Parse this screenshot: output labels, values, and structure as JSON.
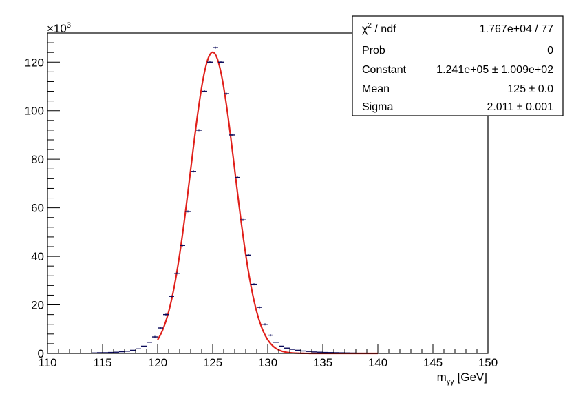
{
  "chart_data": {
    "type": "line",
    "title": "",
    "xlabel": "[GeV]",
    "xlabel_symbol": "m",
    "xlabel_subscript": "γγ",
    "ylabel": "",
    "y_multiplier_base": "×10",
    "y_multiplier_exp": "3",
    "xlim": [
      110,
      150
    ],
    "ylim": [
      0,
      132
    ],
    "x_ticks": [
      "110",
      "115",
      "120",
      "125",
      "130",
      "135",
      "140",
      "145",
      "150"
    ],
    "y_ticks": [
      "0",
      "20",
      "40",
      "60",
      "80",
      "100",
      "120"
    ],
    "colors": {
      "histogram": "#0a0a5a",
      "fit": "#e0201b"
    },
    "histogram": {
      "name": "",
      "bin_width": 0.5,
      "x": [
        114.25,
        114.75,
        115.25,
        115.75,
        116.25,
        116.75,
        117.25,
        117.75,
        118.25,
        118.75,
        119.25,
        119.75,
        120.25,
        120.75,
        121.25,
        121.75,
        122.25,
        122.75,
        123.25,
        123.75,
        124.25,
        124.75,
        125.25,
        125.75,
        126.25,
        126.75,
        127.25,
        127.75,
        128.25,
        128.75,
        129.25,
        129.75,
        130.25,
        130.75,
        131.25,
        131.75,
        132.25,
        132.75,
        133.25,
        133.75,
        134.25,
        134.75,
        135.25,
        135.75,
        136.25,
        136.75,
        137.25,
        137.75,
        138.25,
        138.75,
        139.25,
        139.75
      ],
      "y": [
        0.2,
        0.3,
        0.3,
        0.4,
        0.5,
        0.7,
        0.9,
        1.3,
        1.9,
        3.0,
        4.6,
        6.8,
        10.5,
        16.0,
        23.5,
        33.0,
        44.5,
        58.5,
        75.0,
        92.0,
        108.0,
        120.0,
        126.0,
        120.0,
        107.0,
        90.0,
        72.5,
        55.0,
        40.5,
        28.5,
        19.0,
        12.0,
        7.5,
        4.6,
        3.0,
        2.2,
        1.7,
        1.3,
        1.0,
        0.8,
        0.6,
        0.5,
        0.4,
        0.35,
        0.3,
        0.25,
        0.2,
        0.15,
        0.1,
        0.1,
        0.05,
        0.05
      ]
    },
    "fit": {
      "function": "gaussian",
      "x_range": [
        120,
        140
      ],
      "constant": 124.1,
      "mean": 125,
      "sigma": 2.011
    }
  },
  "stats_box": {
    "rows": [
      {
        "label_symbol": "χ",
        "label_sup": "2",
        "label": " / ndf",
        "value": "1.767e+04 / 77"
      },
      {
        "label": "Prob",
        "value": "0"
      },
      {
        "label": "Constant",
        "value": "1.241e+05 ± 1.009e+02"
      },
      {
        "label": "Mean",
        "value": "125 ± 0.0"
      },
      {
        "label": "Sigma",
        "value": "2.011 ± 0.001"
      }
    ]
  }
}
